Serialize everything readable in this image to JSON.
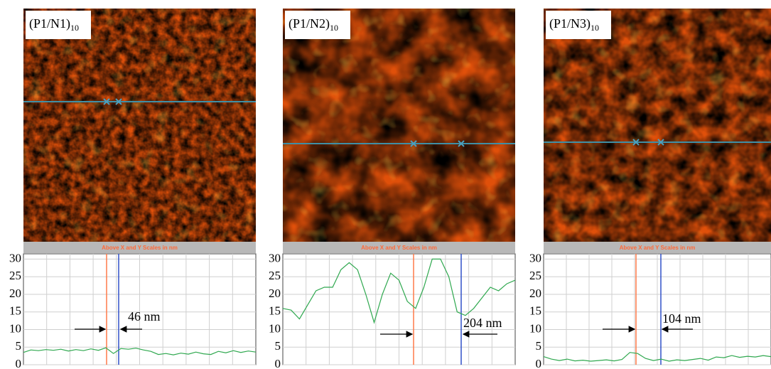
{
  "chart_data": [
    {
      "type": "line",
      "label": "(P1/N1)",
      "label_sub": "10",
      "subtitle": "Above X and Y Scales in nm",
      "annotation": "46 nm",
      "ylim": [
        0,
        31.5
      ],
      "yticks": [
        0,
        5,
        10,
        15,
        20,
        25,
        30
      ],
      "grid": true,
      "series": [
        {
          "color": "#2fa84f",
          "values": [
            3.5,
            4.2,
            4.0,
            4.3,
            4.1,
            4.4,
            3.9,
            4.3,
            4.0,
            4.5,
            4.1,
            4.8,
            3.2,
            4.6,
            4.4,
            4.7,
            4.2,
            3.8,
            2.9,
            3.2,
            2.8,
            3.3,
            3.0,
            3.6,
            3.1,
            2.9,
            3.8,
            3.4,
            4.0,
            3.5,
            3.9,
            3.6
          ]
        }
      ]
    },
    {
      "type": "line",
      "label": "(P1/N2)",
      "label_sub": "10",
      "subtitle": "Above X and Y Scales in nm",
      "annotation": "204 nm",
      "ylim": [
        0,
        31.5
      ],
      "yticks": [
        0,
        5,
        10,
        15,
        20,
        25,
        30
      ],
      "grid": true,
      "series": [
        {
          "color": "#2fa84f",
          "values": [
            16,
            15.5,
            13,
            17,
            21,
            22,
            22,
            27,
            29,
            27,
            20,
            12,
            20,
            26,
            24,
            18,
            16,
            22,
            30,
            30,
            25,
            15,
            14,
            16,
            19,
            22,
            21,
            23,
            24
          ]
        }
      ]
    },
    {
      "type": "line",
      "label": "(P1/N3)",
      "label_sub": "10",
      "subtitle": "Above X and Y Scales in nm",
      "annotation": "104 nm",
      "ylim": [
        0,
        31.5
      ],
      "yticks": [
        0,
        5,
        10,
        15,
        20,
        25,
        30
      ],
      "grid": true,
      "series": [
        {
          "color": "#2fa84f",
          "values": [
            2.3,
            1.6,
            1.2,
            1.6,
            1.1,
            1.3,
            1.0,
            1.2,
            1.4,
            1.1,
            1.5,
            3.5,
            3.2,
            1.8,
            1.2,
            1.6,
            1.0,
            1.4,
            1.2,
            1.5,
            1.8,
            1.3,
            2.2,
            2.0,
            2.6,
            2.1,
            2.4,
            2.2,
            2.6,
            2.3
          ]
        }
      ]
    }
  ]
}
